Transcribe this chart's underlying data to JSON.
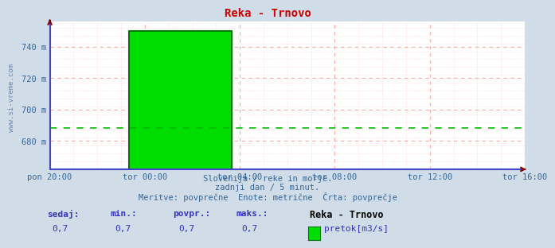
{
  "title": "Reka - Trnovo",
  "bg_color": "#d0dce8",
  "plot_bg_color": "#ffffff",
  "grid_major_color": "#ffaaaa",
  "grid_minor_color": "#ffcccc",
  "avg_line_color": "#00bb00",
  "avg_value": 688.5,
  "line_color": "#00dd00",
  "line_color_border": "#007700",
  "spine_left_color": "#4444cc",
  "spine_bottom_color": "#4444cc",
  "arrow_color": "#880000",
  "ylim": [
    662,
    756
  ],
  "yticks": [
    680,
    700,
    720,
    740
  ],
  "xtick_labels": [
    "pon 20:00",
    "tor 00:00",
    "tor 04:00",
    "tor 08:00",
    "tor 12:00",
    "tor 16:00"
  ],
  "xtick_positions": [
    0,
    4,
    8,
    12,
    16,
    20
  ],
  "x_total": 20,
  "step_start": 3.33,
  "step_end": 7.67,
  "step_height": 750,
  "baseline": 662,
  "watermark": "www.si-vreme.com",
  "subtitle1": "Slovenija / reke in morje.",
  "subtitle2": "zadnji dan / 5 minut.",
  "subtitle3": "Meritve: povprečne  Enote: metrične  Črta: povprečje",
  "legend_title": "Reka - Trnovo",
  "legend_label": "pretok[m3/s]",
  "stat_labels": [
    "sedaj:",
    "min.:",
    "povpr.:",
    "maks.:"
  ],
  "stat_values": [
    "0,7",
    "0,7",
    "0,7",
    "0,7"
  ],
  "stat_color": "#3333bb",
  "title_color": "#cc0000",
  "subtitle_color": "#336699",
  "tick_label_color": "#336699",
  "watermark_color": "#5577aa"
}
